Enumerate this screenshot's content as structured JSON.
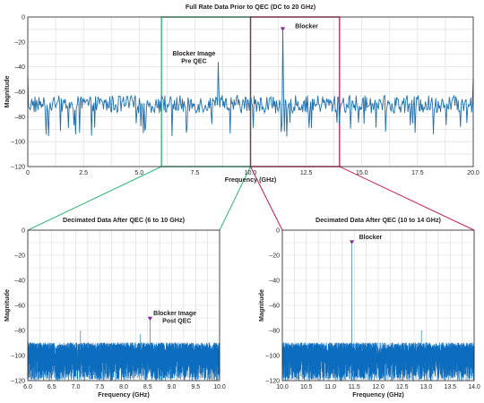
{
  "colors": {
    "series": "#1f6fae",
    "noise": "#0c6cbd",
    "band_6_10": "#2bb673",
    "band_10_14": "#c2185b",
    "marker": "#7b2d8e",
    "grid": "#d9d9d9",
    "text": "#231f20"
  },
  "chart_data": [
    {
      "id": "full",
      "type": "line",
      "title": "Full Rate Data Prior to QEC (DC to 20 GHz)",
      "xlabel": "Frequency (GHz)",
      "ylabel": "Magnitude",
      "xlim": [
        0,
        20
      ],
      "ylim": [
        -120,
        0
      ],
      "xticks": [
        0,
        2.5,
        5,
        7.5,
        10,
        12.5,
        15,
        17.5,
        20
      ],
      "xtick_labels": [
        "0",
        "2.5",
        "5.0",
        "7.5",
        "10.0",
        "12.5",
        "15.0",
        "17.5",
        "20.0"
      ],
      "yticks": [
        0,
        -20,
        -40,
        -60,
        -80,
        -100,
        -120
      ],
      "ytick_labels": [
        "0",
        "–20",
        "–40",
        "–60",
        "–80",
        "–100",
        "–120"
      ],
      "grid": true,
      "noise_floor_db": -70,
      "noise_spread_db": 9,
      "peaks": [
        {
          "x": 0.0,
          "y": -48
        },
        {
          "x": 8.55,
          "y": -36
        },
        {
          "x": 11.45,
          "y": -10
        },
        {
          "x": 20.0,
          "y": -50
        }
      ],
      "highlight_bands": [
        {
          "x0": 6,
          "x1": 10,
          "color_key": "band_6_10"
        },
        {
          "x0": 10,
          "x1": 14,
          "color_key": "band_10_14"
        }
      ],
      "markers": [
        {
          "x": 11.45,
          "y": -10
        }
      ],
      "annotations": [
        {
          "lines": [
            "Blocker Image",
            "Pre QEC"
          ],
          "x": 7.3,
          "y": -31
        },
        {
          "lines": [
            "Blocker"
          ],
          "x": 12.0,
          "y": -9
        }
      ]
    },
    {
      "id": "dec_6_10",
      "type": "line",
      "title": "Decimated Data After QEC (6 to 10 GHz)",
      "xlabel": "Frequency (GHz)",
      "ylabel": "Magnitude",
      "xlim": [
        6,
        10
      ],
      "ylim": [
        -120,
        0
      ],
      "xticks": [
        6,
        6.5,
        7,
        7.5,
        8,
        8.5,
        9,
        9.5,
        10
      ],
      "xtick_labels": [
        "6.0",
        "6.5",
        "7.0",
        "7.5",
        "8.0",
        "8.5",
        "9.0",
        "9.5",
        "10.0"
      ],
      "yticks": [
        0,
        -20,
        -40,
        -60,
        -80,
        -100,
        -120
      ],
      "ytick_labels": [
        "0",
        "–20",
        "–40",
        "–60",
        "–80",
        "–100",
        "–120"
      ],
      "grid": true,
      "noise_floor_db": -100,
      "noise_spread_db": 10,
      "peaks": [
        {
          "x": 7.1,
          "y": -80
        },
        {
          "x": 8.35,
          "y": -83
        },
        {
          "x": 8.55,
          "y": -72
        }
      ],
      "markers": [
        {
          "x": 8.55,
          "y": -71
        }
      ],
      "annotations": [
        {
          "lines": [
            "Blocker Image",
            "Post QEC"
          ],
          "x": 8.62,
          "y": -68
        }
      ]
    },
    {
      "id": "dec_10_14",
      "type": "line",
      "title": "Decimated Data After QEC (10 to 14 GHz)",
      "xlabel": "Frequency (GHz)",
      "ylabel": "Magnitude",
      "xlim": [
        10,
        14
      ],
      "ylim": [
        -120,
        0
      ],
      "xticks": [
        10,
        10.5,
        11,
        11.5,
        12,
        12.5,
        13,
        13.5,
        14
      ],
      "xtick_labels": [
        "10.0",
        "10.5",
        "11.0",
        "11.5",
        "12.0",
        "12.5",
        "13.0",
        "13.5",
        "14.0"
      ],
      "yticks": [
        0,
        -20,
        -40,
        -60,
        -80,
        -100,
        -120
      ],
      "ytick_labels": [
        "0",
        "–20",
        "–40",
        "–60",
        "–80",
        "–100",
        "–120"
      ],
      "grid": true,
      "noise_floor_db": -100,
      "noise_spread_db": 10,
      "peaks": [
        {
          "x": 11.45,
          "y": -11
        },
        {
          "x": 12.9,
          "y": -80
        }
      ],
      "markers": [
        {
          "x": 11.45,
          "y": -10
        }
      ],
      "annotations": [
        {
          "lines": [
            "Blocker"
          ],
          "x": 11.6,
          "y": -7
        }
      ]
    }
  ]
}
